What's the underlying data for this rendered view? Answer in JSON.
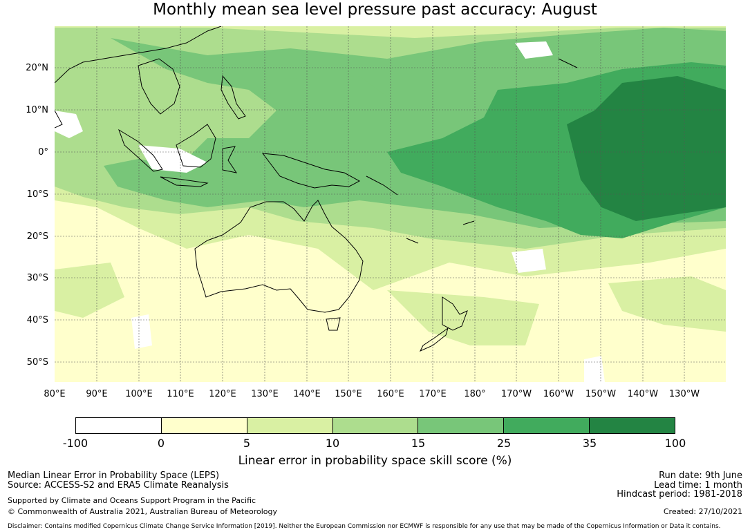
{
  "title": "Monthly mean sea level pressure past accuracy: August",
  "map": {
    "lat_labels": [
      "20°N",
      "10°N",
      "0°",
      "10°S",
      "20°S",
      "30°S",
      "40°S",
      "50°S"
    ],
    "lon_labels": [
      "80°E",
      "90°E",
      "100°E",
      "110°E",
      "120°E",
      "130°E",
      "140°E",
      "150°E",
      "160°E",
      "170°E",
      "180°",
      "170°W",
      "160°W",
      "150°W",
      "140°W",
      "130°W"
    ],
    "lon_range": [
      80,
      240
    ],
    "lat_range": [
      -55,
      30
    ],
    "gridlines": true
  },
  "colorbar": {
    "ticks": [
      "-100",
      "0",
      "5",
      "10",
      "15",
      "25",
      "35",
      "100"
    ],
    "colors": [
      "#ffffff",
      "#ffffcc",
      "#d9f0a3",
      "#addd8e",
      "#78c679",
      "#41ab5d",
      "#238443"
    ],
    "label": "Linear error in probability space skill score (%)"
  },
  "footer": {
    "left1": "Median Linear Error in Probability Space (LEPS)",
    "left2": "Source: ACCESS-S2 and ERA5 Climate Reanalysis",
    "left3": "Supported by Climate and Oceans Support Program in the Pacific",
    "left4": "© Commonwealth of Australia 2021, Australian Bureau of Meteorology",
    "right1": "Run date: 9th June",
    "right2": "Lead time: 1 month",
    "right3": "Hindcast period: 1981-2018",
    "right4": "Created: 27/10/2021",
    "disclaimer": "Disclaimer: Contains modified Copernicus Climate Change Service Information [2019]. Neither the European Commission nor ECMWF is responsible for any use that may be made of the Copernicus Information or Data it contains."
  }
}
